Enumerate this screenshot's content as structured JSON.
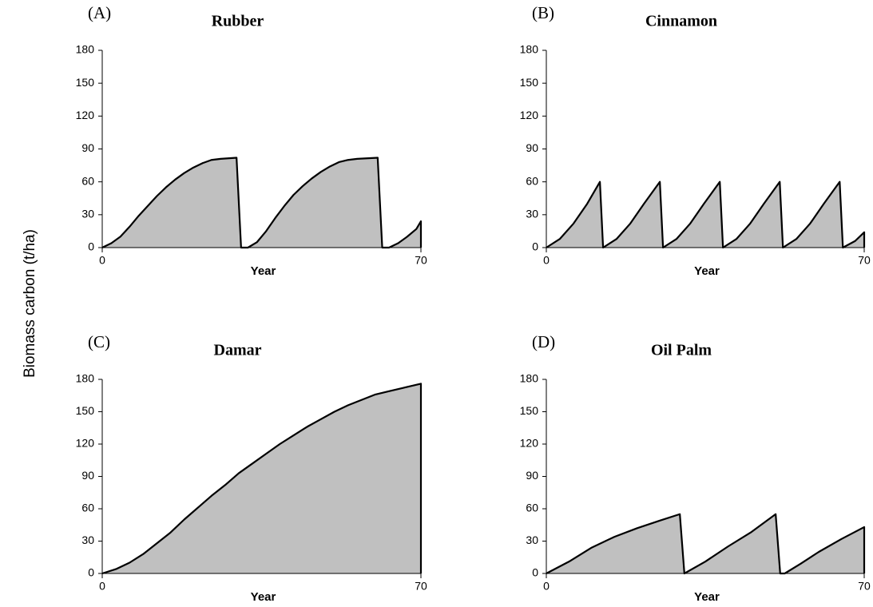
{
  "shared_ylabel": "Biomass carbon (t/ha)",
  "chart_data": [
    {
      "type": "area",
      "panel_label": "(A)",
      "title": "Rubber",
      "xlabel": "Year",
      "color": "#c0c0c0",
      "x": [
        0,
        2,
        4,
        6,
        8,
        10,
        12,
        14,
        16,
        18,
        20,
        22,
        24,
        26,
        29.5,
        30.5,
        32,
        34,
        36,
        38,
        40,
        42,
        44,
        46,
        48,
        50,
        52,
        54,
        56,
        60.5,
        61.5,
        63,
        65,
        67,
        69,
        70
      ],
      "values": [
        0,
        4,
        10,
        19,
        29,
        38,
        47,
        55,
        62,
        68,
        73,
        77,
        80,
        81,
        82,
        0,
        0,
        5,
        15,
        27,
        38,
        48,
        56,
        63,
        69,
        74,
        78,
        80,
        81,
        82,
        0,
        0,
        4,
        10,
        17,
        24
      ],
      "xlim": [
        0,
        70
      ],
      "xticks": [
        0,
        70
      ],
      "ylim": [
        0,
        180
      ],
      "yticks": [
        0,
        30,
        60,
        90,
        120,
        150,
        180
      ]
    },
    {
      "type": "area",
      "panel_label": "(B)",
      "title": "Cinnamon",
      "xlabel": "Year",
      "color": "#c0c0c0",
      "x": [
        0,
        3,
        6,
        9,
        11.8,
        12.5,
        15.5,
        18.5,
        21.5,
        25,
        25.7,
        28.7,
        31.7,
        34.7,
        38.2,
        38.9,
        41.9,
        44.9,
        47.9,
        51.4,
        52.1,
        55.1,
        58.1,
        61.1,
        64.6,
        65.3,
        68,
        70
      ],
      "values": [
        0,
        8,
        22,
        40,
        60,
        0,
        8,
        22,
        40,
        60,
        0,
        8,
        22,
        40,
        60,
        0,
        8,
        22,
        40,
        60,
        0,
        8,
        22,
        40,
        60,
        0,
        6,
        14
      ],
      "xlim": [
        0,
        70
      ],
      "xticks": [
        0,
        70
      ],
      "ylim": [
        0,
        180
      ],
      "yticks": [
        0,
        30,
        60,
        90,
        120,
        150,
        180
      ]
    },
    {
      "type": "area",
      "panel_label": "(C)",
      "title": "Damar",
      "xlabel": "Year",
      "color": "#c0c0c0",
      "x": [
        0,
        3,
        6,
        9,
        12,
        15,
        18,
        21,
        24,
        27,
        30,
        33,
        36,
        39,
        42,
        45,
        48,
        51,
        54,
        57,
        60,
        63,
        66,
        70
      ],
      "values": [
        0,
        4,
        10,
        18,
        28,
        38,
        50,
        61,
        72,
        82,
        93,
        102,
        111,
        120,
        128,
        136,
        143,
        150,
        156,
        161,
        166,
        169,
        172,
        176
      ],
      "xlim": [
        0,
        70
      ],
      "xticks": [
        0,
        70
      ],
      "ylim": [
        0,
        180
      ],
      "yticks": [
        0,
        30,
        60,
        90,
        120,
        150,
        180
      ]
    },
    {
      "type": "area",
      "panel_label": "(D)",
      "title": "Oil Palm",
      "xlabel": "Year",
      "color": "#c0c0c0",
      "x": [
        0,
        5,
        10,
        15,
        20,
        25,
        29.4,
        30.4,
        35,
        40,
        45,
        50.5,
        51.5,
        52.5,
        56,
        60,
        65,
        70
      ],
      "values": [
        0,
        11,
        24,
        34,
        42,
        49,
        55,
        0,
        11,
        25,
        38,
        55,
        0,
        0,
        9,
        20,
        32,
        43
      ],
      "xlim": [
        0,
        70
      ],
      "xticks": [
        0,
        70
      ],
      "ylim": [
        0,
        180
      ],
      "yticks": [
        0,
        30,
        60,
        90,
        120,
        150,
        180
      ]
    }
  ]
}
